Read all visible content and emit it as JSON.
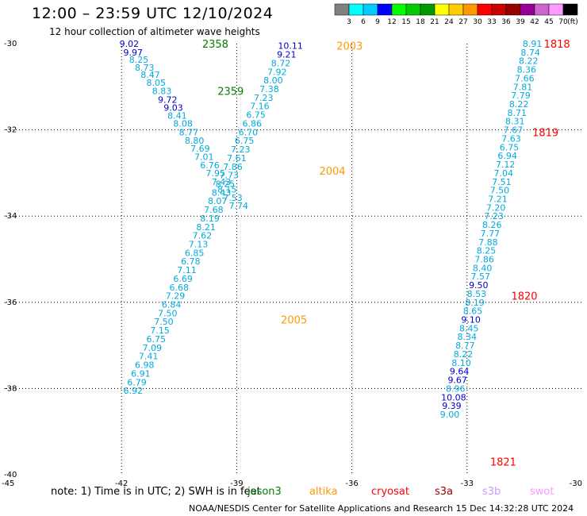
{
  "header": {
    "title": "12:00 – 23:59 UTC 12/10/2024",
    "subtitle": "12 hour collection of altimeter wave heights"
  },
  "footer": {
    "note": "note: 1) Time is in UTC; 2) SWH is in feet",
    "credit": "NOAA/NESDIS Center for Satellite Applications and Research   15 Dec 14:32:28 UTC 2024",
    "missions": [
      {
        "label": "jason3",
        "color": "#008000"
      },
      {
        "label": "altika",
        "color": "#ff9900"
      },
      {
        "label": "cryosat",
        "color": "#ff0000"
      },
      {
        "label": "s3a",
        "color": "#990000"
      },
      {
        "label": "s3b",
        "color": "#cc99ff"
      },
      {
        "label": "swot",
        "color": "#ff99ff"
      }
    ]
  },
  "chart_data": {
    "type": "scatter",
    "xlim": [
      -45,
      -30
    ],
    "ylim": [
      -40,
      -30
    ],
    "xticks": [
      -45,
      -42,
      -39,
      -36,
      -33,
      -30
    ],
    "yticks": [
      -30,
      -32,
      -34,
      -36,
      -38,
      -40
    ],
    "grid": true,
    "colorbar": {
      "unit": "(ft)",
      "ticks": [
        "3",
        "6",
        "9",
        "12",
        "15",
        "18",
        "21",
        "24",
        "27",
        "30",
        "33",
        "36",
        "39",
        "42",
        "45",
        "70"
      ],
      "colors": [
        "#808080",
        "#00ffff",
        "#00ccff",
        "#0000ff",
        "#00ff00",
        "#00cc00",
        "#009900",
        "#ffff00",
        "#ffcc00",
        "#ff9900",
        "#ff0000",
        "#cc0000",
        "#990000",
        "#990099",
        "#cc66cc",
        "#ff99ff",
        "#000000"
      ]
    },
    "time_labels": [
      {
        "text": "2358",
        "x": -39.9,
        "y": -30.0,
        "color": "#008000"
      },
      {
        "text": "2359",
        "x": -39.5,
        "y": -31.1,
        "color": "#008000"
      },
      {
        "text": "2003",
        "x": -36.4,
        "y": -30.05,
        "color": "#ff9900"
      },
      {
        "text": "2004",
        "x": -36.85,
        "y": -32.95,
        "color": "#ff9900"
      },
      {
        "text": "2005",
        "x": -37.85,
        "y": -36.4,
        "color": "#ff9900"
      },
      {
        "text": "1818",
        "x": -31.0,
        "y": -30.0,
        "color": "#ff0000"
      },
      {
        "text": "1819",
        "x": -31.3,
        "y": -32.05,
        "color": "#ff0000"
      },
      {
        "text": "1820",
        "x": -31.85,
        "y": -35.85,
        "color": "#ff0000"
      },
      {
        "text": "1821",
        "x": -32.4,
        "y": -39.7,
        "color": "#ff0000"
      }
    ],
    "series": [
      {
        "name": "jason3",
        "points": [
          {
            "x": -41.8,
            "y": -30.0,
            "v": "9.02",
            "c": "#0000cc"
          },
          {
            "x": -41.7,
            "y": -30.2,
            "v": "9.97",
            "c": "#0000cc"
          },
          {
            "x": -41.55,
            "y": -30.37,
            "v": "8.25",
            "c": "#00aadd"
          },
          {
            "x": -41.4,
            "y": -30.55,
            "v": "8.73",
            "c": "#00aadd"
          },
          {
            "x": -41.25,
            "y": -30.72,
            "v": "8.47",
            "c": "#00aadd"
          },
          {
            "x": -41.1,
            "y": -30.9,
            "v": "8.05",
            "c": "#00aadd"
          },
          {
            "x": -40.95,
            "y": -31.1,
            "v": "8.83",
            "c": "#00aadd"
          },
          {
            "x": -40.8,
            "y": -31.3,
            "v": "9.72",
            "c": "#0000cc"
          },
          {
            "x": -40.65,
            "y": -31.48,
            "v": "9.03",
            "c": "#0000cc"
          },
          {
            "x": -40.55,
            "y": -31.67,
            "v": "8.41",
            "c": "#00aadd"
          },
          {
            "x": -40.4,
            "y": -31.85,
            "v": "8.08",
            "c": "#00aadd"
          },
          {
            "x": -40.25,
            "y": -32.05,
            "v": "8.77",
            "c": "#00aadd"
          },
          {
            "x": -40.1,
            "y": -32.25,
            "v": "8.80",
            "c": "#00aadd"
          },
          {
            "x": -39.95,
            "y": -32.43,
            "v": "7.69",
            "c": "#00aadd"
          },
          {
            "x": -39.85,
            "y": -32.62,
            "v": "7.01",
            "c": "#00aadd"
          },
          {
            "x": -39.7,
            "y": -32.82,
            "v": "6.76",
            "c": "#00aadd"
          },
          {
            "x": -39.55,
            "y": -33.0,
            "v": "7.95",
            "c": "#00aadd"
          },
          {
            "x": -39.4,
            "y": -33.2,
            "v": "7.43",
            "c": "#00aadd"
          },
          {
            "x": -39.25,
            "y": -33.38,
            "v": "8.15",
            "c": "#00aadd"
          },
          {
            "x": -39.1,
            "y": -33.57,
            "v": "7.53",
            "c": "#00aadd"
          },
          {
            "x": -38.95,
            "y": -33.76,
            "v": "7.74",
            "c": "#00aadd"
          }
        ]
      },
      {
        "name": "altika",
        "points": [
          {
            "x": -37.6,
            "y": -30.05,
            "v": "10.11",
            "c": "#0000cc"
          },
          {
            "x": -37.7,
            "y": -30.25,
            "v": "9.21",
            "c": "#0000cc"
          },
          {
            "x": -37.85,
            "y": -30.45,
            "v": "8.72",
            "c": "#00aadd"
          },
          {
            "x": -37.95,
            "y": -30.65,
            "v": "7.92",
            "c": "#00aadd"
          },
          {
            "x": -38.05,
            "y": -30.85,
            "v": "8.00",
            "c": "#00aadd"
          },
          {
            "x": -38.15,
            "y": -31.05,
            "v": "7.38",
            "c": "#00aadd"
          },
          {
            "x": -38.3,
            "y": -31.25,
            "v": "7.23",
            "c": "#00aadd"
          },
          {
            "x": -38.4,
            "y": -31.45,
            "v": "7.16",
            "c": "#00aadd"
          },
          {
            "x": -38.5,
            "y": -31.65,
            "v": "6.75",
            "c": "#00aadd"
          },
          {
            "x": -38.6,
            "y": -31.85,
            "v": "6.86",
            "c": "#00aadd"
          },
          {
            "x": -38.7,
            "y": -32.05,
            "v": "6.70",
            "c": "#00aadd"
          },
          {
            "x": -38.8,
            "y": -32.25,
            "v": "6.75",
            "c": "#00aadd"
          },
          {
            "x": -38.9,
            "y": -32.45,
            "v": "7.23",
            "c": "#00aadd"
          },
          {
            "x": -39.0,
            "y": -32.65,
            "v": "7.61",
            "c": "#00aadd"
          },
          {
            "x": -39.1,
            "y": -32.85,
            "v": "7.86",
            "c": "#00aadd"
          },
          {
            "x": -39.2,
            "y": -33.05,
            "v": "7.73",
            "c": "#00aadd"
          },
          {
            "x": -39.3,
            "y": -33.25,
            "v": "8.25",
            "c": "#00aadd"
          },
          {
            "x": -39.4,
            "y": -33.45,
            "v": "8.43",
            "c": "#00aadd"
          },
          {
            "x": -39.5,
            "y": -33.65,
            "v": "8.07",
            "c": "#00aadd"
          },
          {
            "x": -39.6,
            "y": -33.85,
            "v": "7.68",
            "c": "#00aadd"
          },
          {
            "x": -39.7,
            "y": -34.05,
            "v": "8.19",
            "c": "#00aadd"
          },
          {
            "x": -39.8,
            "y": -34.25,
            "v": "8.21",
            "c": "#00aadd"
          },
          {
            "x": -39.9,
            "y": -34.45,
            "v": "7.62",
            "c": "#00aadd"
          },
          {
            "x": -40.0,
            "y": -34.65,
            "v": "7.13",
            "c": "#00aadd"
          },
          {
            "x": -40.1,
            "y": -34.85,
            "v": "6.85",
            "c": "#00aadd"
          },
          {
            "x": -40.2,
            "y": -35.05,
            "v": "6.78",
            "c": "#00aadd"
          },
          {
            "x": -40.3,
            "y": -35.25,
            "v": "7.11",
            "c": "#00aadd"
          },
          {
            "x": -40.4,
            "y": -35.45,
            "v": "6.69",
            "c": "#00aadd"
          },
          {
            "x": -40.5,
            "y": -35.65,
            "v": "6.68",
            "c": "#00aadd"
          },
          {
            "x": -40.6,
            "y": -35.85,
            "v": "7.29",
            "c": "#00aadd"
          },
          {
            "x": -40.7,
            "y": -36.05,
            "v": "6.84",
            "c": "#00aadd"
          },
          {
            "x": -40.8,
            "y": -36.25,
            "v": "7.50",
            "c": "#00aadd"
          },
          {
            "x": -40.9,
            "y": -36.45,
            "v": "7.50",
            "c": "#00aadd"
          },
          {
            "x": -41.0,
            "y": -36.65,
            "v": "7.15",
            "c": "#00aadd"
          },
          {
            "x": -41.1,
            "y": -36.85,
            "v": "6.75",
            "c": "#00aadd"
          },
          {
            "x": -41.2,
            "y": -37.05,
            "v": "7.09",
            "c": "#00aadd"
          },
          {
            "x": -41.3,
            "y": -37.25,
            "v": "7.41",
            "c": "#00aadd"
          },
          {
            "x": -41.4,
            "y": -37.45,
            "v": "6.98",
            "c": "#00aadd"
          },
          {
            "x": -41.5,
            "y": -37.65,
            "v": "6.91",
            "c": "#00aadd"
          },
          {
            "x": -41.6,
            "y": -37.85,
            "v": "6.79",
            "c": "#00aadd"
          },
          {
            "x": -41.7,
            "y": -38.05,
            "v": "6.92",
            "c": "#00aadd"
          }
        ]
      },
      {
        "name": "cryosat",
        "points": [
          {
            "x": -31.3,
            "y": -30.0,
            "v": "8.91",
            "c": "#00aadd"
          },
          {
            "x": -31.35,
            "y": -30.2,
            "v": "8.74",
            "c": "#00aadd"
          },
          {
            "x": -31.4,
            "y": -30.4,
            "v": "8.22",
            "c": "#00aadd"
          },
          {
            "x": -31.45,
            "y": -30.6,
            "v": "8.36",
            "c": "#00aadd"
          },
          {
            "x": -31.5,
            "y": -30.8,
            "v": "7.66",
            "c": "#00aadd"
          },
          {
            "x": -31.55,
            "y": -31.0,
            "v": "7.81",
            "c": "#00aadd"
          },
          {
            "x": -31.6,
            "y": -31.2,
            "v": "7.79",
            "c": "#00aadd"
          },
          {
            "x": -31.65,
            "y": -31.4,
            "v": "8.22",
            "c": "#00aadd"
          },
          {
            "x": -31.7,
            "y": -31.6,
            "v": "8.71",
            "c": "#00aadd"
          },
          {
            "x": -31.75,
            "y": -31.8,
            "v": "8.31",
            "c": "#00aadd"
          },
          {
            "x": -31.8,
            "y": -32.0,
            "v": "7.67",
            "c": "#00aadd"
          },
          {
            "x": -31.85,
            "y": -32.2,
            "v": "7.63",
            "c": "#00aadd"
          },
          {
            "x": -31.9,
            "y": -32.4,
            "v": "6.75",
            "c": "#00aadd"
          },
          {
            "x": -31.95,
            "y": -32.6,
            "v": "6.94",
            "c": "#00aadd"
          },
          {
            "x": -32.0,
            "y": -32.8,
            "v": "7.12",
            "c": "#00aadd"
          },
          {
            "x": -32.05,
            "y": -33.0,
            "v": "7.04",
            "c": "#00aadd"
          },
          {
            "x": -32.1,
            "y": -33.2,
            "v": "7.51",
            "c": "#00aadd"
          },
          {
            "x": -32.15,
            "y": -33.4,
            "v": "7.50",
            "c": "#00aadd"
          },
          {
            "x": -32.2,
            "y": -33.6,
            "v": "7.21",
            "c": "#00aadd"
          },
          {
            "x": -32.25,
            "y": -33.8,
            "v": "7.20",
            "c": "#00aadd"
          },
          {
            "x": -32.3,
            "y": -34.0,
            "v": "7.23",
            "c": "#00aadd"
          },
          {
            "x": -32.35,
            "y": -34.2,
            "v": "8.26",
            "c": "#00aadd"
          },
          {
            "x": -32.4,
            "y": -34.4,
            "v": "7.77",
            "c": "#00aadd"
          },
          {
            "x": -32.45,
            "y": -34.6,
            "v": "7.88",
            "c": "#00aadd"
          },
          {
            "x": -32.5,
            "y": -34.8,
            "v": "8.25",
            "c": "#00aadd"
          },
          {
            "x": -32.55,
            "y": -35.0,
            "v": "7.86",
            "c": "#00aadd"
          },
          {
            "x": -32.6,
            "y": -35.2,
            "v": "8.40",
            "c": "#00aadd"
          },
          {
            "x": -32.65,
            "y": -35.4,
            "v": "7.57",
            "c": "#00aadd"
          },
          {
            "x": -32.7,
            "y": -35.6,
            "v": "9.50",
            "c": "#0000cc"
          },
          {
            "x": -32.75,
            "y": -35.8,
            "v": "8.53",
            "c": "#00aadd"
          },
          {
            "x": -32.8,
            "y": -36.0,
            "v": "8.19",
            "c": "#00aadd"
          },
          {
            "x": -32.85,
            "y": -36.2,
            "v": "8.65",
            "c": "#00aadd"
          },
          {
            "x": -32.9,
            "y": -36.4,
            "v": "9.10",
            "c": "#0000cc"
          },
          {
            "x": -32.95,
            "y": -36.6,
            "v": "8.45",
            "c": "#00aadd"
          },
          {
            "x": -33.0,
            "y": -36.8,
            "v": "8.34",
            "c": "#00aadd"
          },
          {
            "x": -33.05,
            "y": -37.0,
            "v": "8.77",
            "c": "#00aadd"
          },
          {
            "x": -33.1,
            "y": -37.2,
            "v": "8.22",
            "c": "#00aadd"
          },
          {
            "x": -33.15,
            "y": -37.4,
            "v": "8.10",
            "c": "#00aadd"
          },
          {
            "x": -33.2,
            "y": -37.6,
            "v": "9.64",
            "c": "#0000cc"
          },
          {
            "x": -33.25,
            "y": -37.8,
            "v": "9.67",
            "c": "#0000cc"
          },
          {
            "x": -33.3,
            "y": -38.0,
            "v": "8.96",
            "c": "#00aadd"
          },
          {
            "x": -33.35,
            "y": -38.2,
            "v": "10.08",
            "c": "#0000cc"
          },
          {
            "x": -33.4,
            "y": -38.4,
            "v": "9.39",
            "c": "#0000cc"
          },
          {
            "x": -33.45,
            "y": -38.6,
            "v": "9.00",
            "c": "#00aadd"
          }
        ]
      }
    ]
  }
}
